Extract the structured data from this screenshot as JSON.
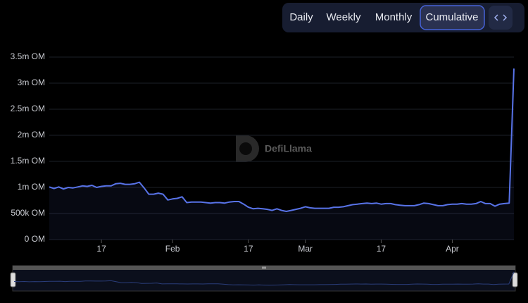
{
  "toolbar": {
    "tabs": [
      "Daily",
      "Weekly",
      "Monthly",
      "Cumulative"
    ],
    "active_tab": 3
  },
  "watermark": "DefiLlama",
  "chart_data": {
    "type": "line",
    "color": "#5873e8",
    "grid": true,
    "x": [
      6,
      7,
      8,
      9,
      10,
      11,
      12,
      13,
      14,
      15,
      16,
      17,
      18,
      19,
      20,
      21,
      22,
      23,
      24,
      25,
      26,
      27,
      28,
      29,
      30,
      31,
      32,
      33,
      34,
      35,
      36,
      37,
      38,
      39,
      40,
      41,
      42,
      43,
      44,
      45,
      46,
      47,
      48,
      49,
      50,
      51,
      52,
      53,
      54,
      55,
      56,
      57,
      58,
      59,
      60,
      61,
      62,
      63,
      64,
      65,
      66,
      67,
      68,
      69,
      70,
      71,
      72,
      73,
      74,
      75,
      76,
      77,
      78,
      79,
      80,
      81,
      82,
      83,
      84,
      85,
      86,
      87,
      88,
      89,
      90,
      91,
      92,
      93,
      94,
      95,
      96,
      97,
      98,
      99,
      100,
      101,
      102,
      103,
      104
    ],
    "values": [
      1010000,
      980000,
      1010000,
      970000,
      1000000,
      990000,
      1010000,
      1030000,
      1020000,
      1040000,
      1000000,
      1020000,
      1030000,
      1030000,
      1070000,
      1080000,
      1060000,
      1060000,
      1070000,
      1100000,
      990000,
      870000,
      870000,
      890000,
      870000,
      760000,
      780000,
      790000,
      820000,
      710000,
      720000,
      720000,
      720000,
      710000,
      700000,
      710000,
      710000,
      700000,
      720000,
      730000,
      730000,
      680000,
      620000,
      590000,
      600000,
      590000,
      580000,
      560000,
      590000,
      560000,
      540000,
      560000,
      580000,
      600000,
      630000,
      610000,
      600000,
      600000,
      600000,
      600000,
      620000,
      620000,
      630000,
      650000,
      670000,
      680000,
      690000,
      700000,
      690000,
      700000,
      680000,
      690000,
      690000,
      670000,
      660000,
      650000,
      650000,
      650000,
      670000,
      700000,
      690000,
      670000,
      650000,
      650000,
      670000,
      680000,
      680000,
      690000,
      680000,
      680000,
      690000,
      730000,
      690000,
      690000,
      640000,
      680000,
      690000,
      700000,
      3280000
    ],
    "xlim": [
      6,
      104
    ],
    "xticks": [
      {
        "value": 17,
        "label": "17"
      },
      {
        "value": 32,
        "label": "Feb"
      },
      {
        "value": 48,
        "label": "17"
      },
      {
        "value": 60,
        "label": "Mar"
      },
      {
        "value": 76,
        "label": "17"
      },
      {
        "value": 91,
        "label": "Apr"
      }
    ],
    "ylim": [
      0,
      3500000
    ],
    "yticks": [
      {
        "value": 0,
        "label": "0 OM"
      },
      {
        "value": 500000,
        "label": "500k OM"
      },
      {
        "value": 1000000,
        "label": "1m OM"
      },
      {
        "value": 1500000,
        "label": "1.5m OM"
      },
      {
        "value": 2000000,
        "label": "2m OM"
      },
      {
        "value": 2500000,
        "label": "2.5m OM"
      },
      {
        "value": 3000000,
        "label": "3m OM"
      },
      {
        "value": 3500000,
        "label": "3.5m OM"
      }
    ]
  }
}
